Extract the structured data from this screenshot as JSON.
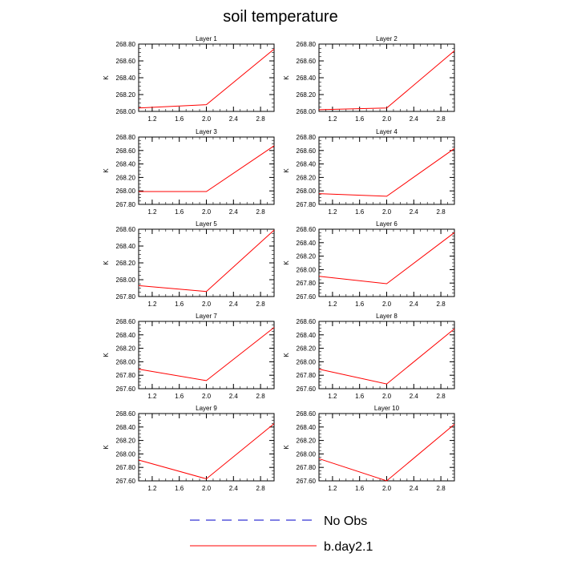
{
  "figure_title": "soil temperature",
  "colors": {
    "model": "#ff0000",
    "obs": "#0000c8",
    "axis": "#000000",
    "background": "#ffffff"
  },
  "legend": [
    {
      "label": "No Obs",
      "style": "dashed",
      "color": "#0000c8"
    },
    {
      "label": "b.day2.1",
      "style": "solid",
      "color": "#ff0000"
    }
  ],
  "chart_data": [
    {
      "type": "line",
      "title": "Layer 1",
      "ylabel": "K",
      "xlim": [
        1.0,
        3.0
      ],
      "ylim": [
        268.0,
        268.8
      ],
      "xticks": [
        "1.2",
        "1.6",
        "2.0",
        "2.4",
        "2.8"
      ],
      "xtick_values": [
        1.2,
        1.6,
        2.0,
        2.4,
        2.8
      ],
      "yticks": [
        "268.00",
        "268.20",
        "268.40",
        "268.60",
        "268.80"
      ],
      "ytick_values": [
        268.0,
        268.2,
        268.4,
        268.6,
        268.8
      ],
      "series": [
        {
          "name": "b.day2.1",
          "x": [
            1.0,
            2.0,
            3.0
          ],
          "values": [
            268.04,
            268.08,
            268.74
          ]
        }
      ]
    },
    {
      "type": "line",
      "title": "Layer 2",
      "ylabel": "K",
      "xlim": [
        1.0,
        3.0
      ],
      "ylim": [
        268.0,
        268.8
      ],
      "xticks": [
        "1.2",
        "1.6",
        "2.0",
        "2.4",
        "2.8"
      ],
      "xtick_values": [
        1.2,
        1.6,
        2.0,
        2.4,
        2.8
      ],
      "yticks": [
        "268.00",
        "268.20",
        "268.40",
        "268.60",
        "268.80"
      ],
      "ytick_values": [
        268.0,
        268.2,
        268.4,
        268.6,
        268.8
      ],
      "series": [
        {
          "name": "b.day2.1",
          "x": [
            1.0,
            2.0,
            3.0
          ],
          "values": [
            268.02,
            268.04,
            268.72
          ]
        }
      ]
    },
    {
      "type": "line",
      "title": "Layer 3",
      "ylabel": "K",
      "xlim": [
        1.0,
        3.0
      ],
      "ylim": [
        267.8,
        268.8
      ],
      "xticks": [
        "1.2",
        "1.6",
        "2.0",
        "2.4",
        "2.8"
      ],
      "xtick_values": [
        1.2,
        1.6,
        2.0,
        2.4,
        2.8
      ],
      "yticks": [
        "267.80",
        "268.00",
        "268.20",
        "268.40",
        "268.60",
        "268.80"
      ],
      "ytick_values": [
        267.8,
        268.0,
        268.2,
        268.4,
        268.6,
        268.8
      ],
      "series": [
        {
          "name": "b.day2.1",
          "x": [
            1.0,
            2.0,
            3.0
          ],
          "values": [
            267.99,
            267.99,
            268.67
          ]
        }
      ]
    },
    {
      "type": "line",
      "title": "Layer 4",
      "ylabel": "K",
      "xlim": [
        1.0,
        3.0
      ],
      "ylim": [
        267.8,
        268.8
      ],
      "xticks": [
        "1.2",
        "1.6",
        "2.0",
        "2.4",
        "2.8"
      ],
      "xtick_values": [
        1.2,
        1.6,
        2.0,
        2.4,
        2.8
      ],
      "yticks": [
        "267.80",
        "268.00",
        "268.20",
        "268.40",
        "268.60",
        "268.80"
      ],
      "ytick_values": [
        267.8,
        268.0,
        268.2,
        268.4,
        268.6,
        268.8
      ],
      "series": [
        {
          "name": "b.day2.1",
          "x": [
            1.0,
            2.0,
            3.0
          ],
          "values": [
            267.96,
            267.92,
            268.63
          ]
        }
      ]
    },
    {
      "type": "line",
      "title": "Layer 5",
      "ylabel": "K",
      "xlim": [
        1.0,
        3.0
      ],
      "ylim": [
        267.8,
        268.6
      ],
      "xticks": [
        "1.2",
        "1.6",
        "2.0",
        "2.4",
        "2.8"
      ],
      "xtick_values": [
        1.2,
        1.6,
        2.0,
        2.4,
        2.8
      ],
      "yticks": [
        "267.80",
        "268.00",
        "268.20",
        "268.40",
        "268.60"
      ],
      "ytick_values": [
        267.8,
        268.0,
        268.2,
        268.4,
        268.6
      ],
      "series": [
        {
          "name": "b.day2.1",
          "x": [
            1.0,
            2.0,
            3.0
          ],
          "values": [
            267.93,
            267.86,
            268.59
          ]
        }
      ]
    },
    {
      "type": "line",
      "title": "Layer 6",
      "ylabel": "K",
      "xlim": [
        1.0,
        3.0
      ],
      "ylim": [
        267.6,
        268.6
      ],
      "xticks": [
        "1.2",
        "1.6",
        "2.0",
        "2.4",
        "2.8"
      ],
      "xtick_values": [
        1.2,
        1.6,
        2.0,
        2.4,
        2.8
      ],
      "yticks": [
        "267.60",
        "267.80",
        "268.00",
        "268.20",
        "268.40",
        "268.60"
      ],
      "ytick_values": [
        267.6,
        267.8,
        268.0,
        268.2,
        268.4,
        268.6
      ],
      "series": [
        {
          "name": "b.day2.1",
          "x": [
            1.0,
            2.0,
            3.0
          ],
          "values": [
            267.9,
            267.79,
            268.55
          ]
        }
      ]
    },
    {
      "type": "line",
      "title": "Layer 7",
      "ylabel": "K",
      "xlim": [
        1.0,
        3.0
      ],
      "ylim": [
        267.6,
        268.6
      ],
      "xticks": [
        "1.2",
        "1.6",
        "2.0",
        "2.4",
        "2.8"
      ],
      "xtick_values": [
        1.2,
        1.6,
        2.0,
        2.4,
        2.8
      ],
      "yticks": [
        "267.60",
        "267.80",
        "268.00",
        "268.20",
        "268.40",
        "268.60"
      ],
      "ytick_values": [
        267.6,
        267.8,
        268.0,
        268.2,
        268.4,
        268.6
      ],
      "series": [
        {
          "name": "b.day2.1",
          "x": [
            1.0,
            2.0,
            3.0
          ],
          "values": [
            267.89,
            267.72,
            268.51
          ]
        }
      ]
    },
    {
      "type": "line",
      "title": "Layer 8",
      "ylabel": "K",
      "xlim": [
        1.0,
        3.0
      ],
      "ylim": [
        267.6,
        268.6
      ],
      "xticks": [
        "1.2",
        "1.6",
        "2.0",
        "2.4",
        "2.8"
      ],
      "xtick_values": [
        1.2,
        1.6,
        2.0,
        2.4,
        2.8
      ],
      "yticks": [
        "267.60",
        "267.80",
        "268.00",
        "268.20",
        "268.40",
        "268.60"
      ],
      "ytick_values": [
        267.6,
        267.8,
        268.0,
        268.2,
        268.4,
        268.6
      ],
      "series": [
        {
          "name": "b.day2.1",
          "x": [
            1.0,
            2.0,
            3.0
          ],
          "values": [
            267.89,
            267.67,
            268.49
          ]
        }
      ]
    },
    {
      "type": "line",
      "title": "Layer 9",
      "ylabel": "K",
      "xlim": [
        1.0,
        3.0
      ],
      "ylim": [
        267.6,
        268.6
      ],
      "xticks": [
        "1.2",
        "1.6",
        "2.0",
        "2.4",
        "2.8"
      ],
      "xtick_values": [
        1.2,
        1.6,
        2.0,
        2.4,
        2.8
      ],
      "yticks": [
        "267.60",
        "267.80",
        "268.00",
        "268.20",
        "268.40",
        "268.60"
      ],
      "ytick_values": [
        267.6,
        267.8,
        268.0,
        268.2,
        268.4,
        268.6
      ],
      "series": [
        {
          "name": "b.day2.1",
          "x": [
            1.0,
            2.0,
            3.0
          ],
          "values": [
            267.91,
            267.63,
            268.45
          ]
        }
      ]
    },
    {
      "type": "line",
      "title": "Layer 10",
      "ylabel": "K",
      "xlim": [
        1.0,
        3.0
      ],
      "ylim": [
        267.6,
        268.6
      ],
      "xticks": [
        "1.2",
        "1.6",
        "2.0",
        "2.4",
        "2.8"
      ],
      "xtick_values": [
        1.2,
        1.6,
        2.0,
        2.4,
        2.8
      ],
      "yticks": [
        "267.60",
        "267.80",
        "268.00",
        "268.20",
        "268.40",
        "268.60"
      ],
      "ytick_values": [
        267.6,
        267.8,
        268.0,
        268.2,
        268.4,
        268.6
      ],
      "series": [
        {
          "name": "b.day2.1",
          "x": [
            1.0,
            2.0,
            3.0
          ],
          "values": [
            267.93,
            267.6,
            268.44
          ]
        }
      ]
    }
  ]
}
